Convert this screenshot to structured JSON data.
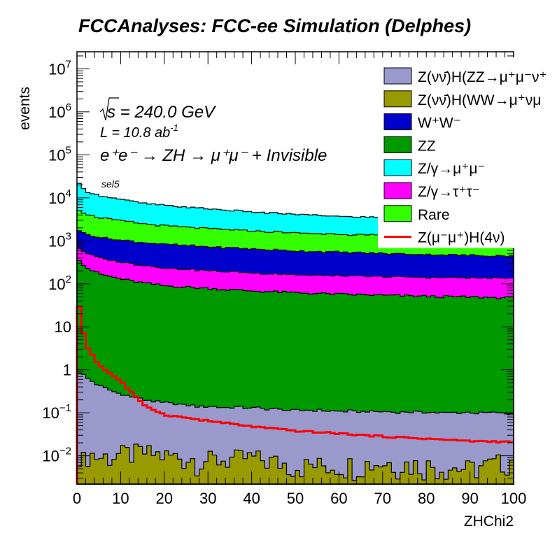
{
  "chart_data": {
    "type": "bar",
    "style": "stacked-histogram-log",
    "title": "FCCAnalyses: FCC-ee Simulation (Delphes)",
    "xlabel": "ZHChi2",
    "ylabel": "events",
    "xlim": [
      0,
      100
    ],
    "ylim": [
      0.0022,
      25000000
    ],
    "yscale": "log",
    "bin_width": 1,
    "x_ticks": [
      "0",
      "10",
      "20",
      "30",
      "40",
      "50",
      "60",
      "70",
      "80",
      "90",
      "100"
    ],
    "x_tick_values": [
      0,
      10,
      20,
      30,
      40,
      50,
      60,
      70,
      80,
      90,
      100
    ],
    "y_ticks": [
      {
        "value": 10000000,
        "base": "10",
        "exp": "7"
      },
      {
        "value": 1000000,
        "base": "10",
        "exp": "6"
      },
      {
        "value": 100000,
        "base": "10",
        "exp": "5"
      },
      {
        "value": 10000,
        "base": "10",
        "exp": "4"
      },
      {
        "value": 1000,
        "base": "10",
        "exp": "3"
      },
      {
        "value": 100,
        "base": "10",
        "exp": "2"
      },
      {
        "value": 10,
        "base": "10",
        "exp": ""
      },
      {
        "value": 1,
        "base": "1",
        "exp": ""
      },
      {
        "value": 0.1,
        "base": "10",
        "exp": "−1"
      },
      {
        "value": 0.01,
        "base": "10",
        "exp": "−2"
      }
    ],
    "annotations": {
      "sqrt_s": "s = 240.0 GeV",
      "lumi_main": "L = 10.8 ab",
      "lumi_exp": "-1",
      "process": "e⁺e⁻ → ZH → μ⁺μ⁻ + Invisible",
      "selection": "sel5"
    },
    "sample_x": [
      0.5,
      1.5,
      2.5,
      5,
      10,
      15,
      20,
      30,
      40,
      50,
      60,
      70,
      80,
      90,
      99.5
    ],
    "series": [
      {
        "name": "Z(νν̄)H(ZZ→μ⁺μ⁻ν⁺ν⁻)",
        "legend": "Z(νν̄)H(ZZ→μ⁺μ⁻ν⁺",
        "color": "#9999cc",
        "kind": "stack",
        "values": [
          0.85,
          0.75,
          0.62,
          0.42,
          0.26,
          0.19,
          0.16,
          0.13,
          0.12,
          0.11,
          0.105,
          0.1,
          0.098,
          0.095,
          0.09
        ]
      },
      {
        "name": "Z(νν̄)H(WW→μ⁺νμ⁻ν)",
        "legend": "Z(νν̄)H(WW→μ⁺νμ",
        "color": "#999900",
        "kind": "stack",
        "values": [
          0.014,
          0.008,
          0.012,
          0.009,
          0.011,
          0.012,
          0.01,
          0.008,
          0.009,
          0.006,
          0.006,
          0.007,
          0.006,
          0.005,
          0.008
        ]
      },
      {
        "name": "W⁺W⁻",
        "legend": "W⁺W⁻",
        "color": "#0000cc",
        "kind": "stack",
        "values": [
          1100,
          950,
          900,
          800,
          720,
          650,
          600,
          520,
          470,
          420,
          390,
          360,
          340,
          320,
          310
        ]
      },
      {
        "name": "ZZ",
        "legend": "ZZ",
        "color": "#009900",
        "kind": "stack",
        "values": [
          370,
          280,
          230,
          170,
          130,
          105,
          90,
          78,
          68,
          62,
          57,
          54,
          51,
          49,
          47
        ]
      },
      {
        "name": "Z/γ→μ⁺μ⁻",
        "legend": "Z/γ→μ⁺μ⁻",
        "color": "#00ffff",
        "kind": "stack",
        "values": [
          15800,
          11500,
          9800,
          8000,
          6200,
          5000,
          4400,
          3600,
          3000,
          2600,
          2300,
          2100,
          1950,
          1850,
          1800
        ]
      },
      {
        "name": "Z/γ→τ⁺τ⁻",
        "legend": "Z/γ→τ⁺τ⁻",
        "color": "#ff00ff",
        "kind": "stack",
        "values": [
          320,
          300,
          280,
          230,
          190,
          165,
          145,
          125,
          112,
          100,
          95,
          92,
          90,
          88,
          88
        ]
      },
      {
        "name": "Rare",
        "legend": "Rare",
        "color": "#33ff00",
        "kind": "stack",
        "values": [
          3500,
          3000,
          2700,
          2300,
          1900,
          1600,
          1400,
          1200,
          1050,
          950,
          880,
          820,
          790,
          770,
          760
        ]
      },
      {
        "name": "Z(μ⁻μ⁺)H(4ν)",
        "legend": "Z(μ⁻μ⁺)H(4ν)",
        "color": "#ff0000",
        "kind": "line",
        "values": [
          28,
          7.2,
          3.2,
          1.3,
          0.55,
          0.16,
          0.09,
          0.065,
          0.048,
          0.038,
          0.033,
          0.028,
          0.025,
          0.022,
          0.021
        ]
      }
    ],
    "stack_order_bottom_to_top": [
      "Z(νν̄)H(WW→μ⁺νμ⁻ν)",
      "Z(νν̄)H(ZZ→μ⁺μ⁻ν⁺ν⁻)",
      "ZZ",
      "Z/γ→τ⁺τ⁻",
      "W⁺W⁻",
      "Rare",
      "Z/γ→μ⁺μ⁻"
    ],
    "legend_placement": "top-right",
    "grid": false
  }
}
